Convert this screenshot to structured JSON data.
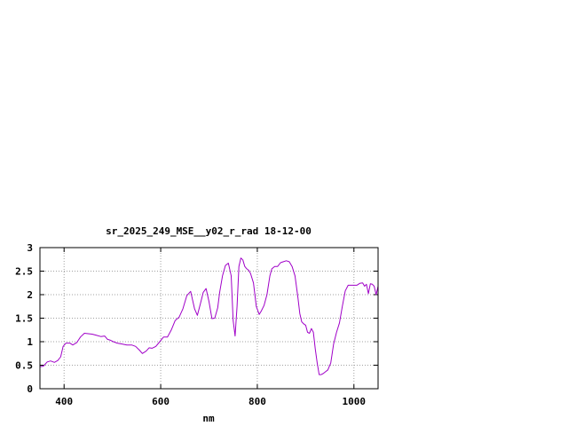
{
  "chart_data": {
    "type": "line",
    "title": "sr_2025_249_MSE__y02_r_rad 18-12-00",
    "xlabel": "nm",
    "ylabel": "",
    "xlim": [
      350,
      1050
    ],
    "ylim": [
      0,
      3
    ],
    "x_ticks": [
      400,
      600,
      800,
      1000
    ],
    "y_ticks": [
      0,
      0.5,
      1,
      1.5,
      2,
      2.5,
      3
    ],
    "y_tick_labels": [
      "0",
      "0.5",
      "1",
      "1.5",
      "2",
      "2.5",
      "3"
    ],
    "grid": true,
    "legend": "none",
    "series": [
      {
        "color": "#a000c8",
        "x": [
          350,
          357,
          365,
          372,
          380,
          387,
          393,
          398,
          404,
          412,
          418,
          426,
          434,
          442,
          450,
          458,
          466,
          476,
          484,
          490,
          496,
          502,
          510,
          520,
          530,
          540,
          548,
          556,
          562,
          570,
          576,
          582,
          590,
          598,
          606,
          614,
          622,
          630,
          638,
          646,
          654,
          662,
          670,
          676,
          682,
          688,
          694,
          700,
          706,
          712,
          718,
          722,
          728,
          734,
          740,
          746,
          750,
          754,
          758,
          762,
          766,
          770,
          774,
          778,
          782,
          786,
          792,
          798,
          804,
          808,
          814,
          820,
          826,
          830,
          836,
          842,
          848,
          854,
          860,
          866,
          872,
          878,
          884,
          888,
          892,
          896,
          900,
          904,
          908,
          912,
          916,
          920,
          924,
          928,
          932,
          936,
          940,
          946,
          952,
          958,
          964,
          970,
          976,
          982,
          988,
          994,
          1000,
          1006,
          1012,
          1018,
          1022,
          1026,
          1030,
          1034,
          1038,
          1042,
          1046,
          1050
        ],
        "y": [
          0.47,
          0.48,
          0.57,
          0.59,
          0.56,
          0.6,
          0.68,
          0.9,
          0.97,
          0.97,
          0.93,
          0.98,
          1.1,
          1.18,
          1.17,
          1.16,
          1.14,
          1.11,
          1.12,
          1.05,
          1.03,
          1.0,
          0.97,
          0.95,
          0.93,
          0.93,
          0.9,
          0.82,
          0.75,
          0.8,
          0.87,
          0.86,
          0.9,
          1.0,
          1.1,
          1.1,
          1.25,
          1.45,
          1.52,
          1.7,
          1.98,
          2.07,
          1.7,
          1.56,
          1.8,
          2.05,
          2.13,
          1.85,
          1.49,
          1.5,
          1.72,
          2.05,
          2.4,
          2.62,
          2.67,
          2.4,
          1.45,
          1.12,
          1.75,
          2.6,
          2.78,
          2.74,
          2.6,
          2.55,
          2.52,
          2.45,
          2.25,
          1.75,
          1.58,
          1.65,
          1.77,
          2.0,
          2.4,
          2.55,
          2.6,
          2.6,
          2.68,
          2.7,
          2.72,
          2.7,
          2.6,
          2.4,
          1.95,
          1.6,
          1.42,
          1.38,
          1.35,
          1.2,
          1.18,
          1.28,
          1.2,
          0.85,
          0.55,
          0.3,
          0.3,
          0.32,
          0.35,
          0.4,
          0.55,
          0.95,
          1.2,
          1.4,
          1.75,
          2.08,
          2.2,
          2.2,
          2.2,
          2.2,
          2.24,
          2.25,
          2.18,
          2.22,
          2.02,
          2.23,
          2.22,
          2.18,
          2.0,
          2.18
        ]
      }
    ]
  }
}
